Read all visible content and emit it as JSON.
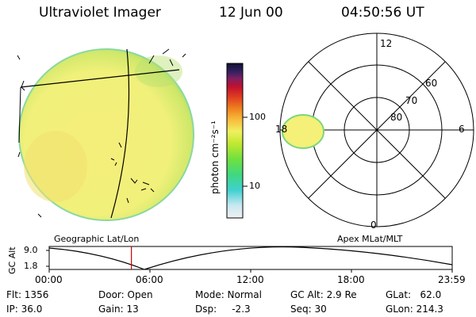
{
  "header": {
    "title": "Ultraviolet Imager",
    "date": "12 Jun 00",
    "time": "04:50:56 UT"
  },
  "colorbar": {
    "unit_label": "photon cm⁻²s⁻¹",
    "ticks": [
      "100",
      "10"
    ]
  },
  "polar": {
    "mlt_labels": [
      "12",
      "18",
      "6",
      "0"
    ],
    "mlat_labels": [
      "60",
      "70",
      "80"
    ]
  },
  "timeline": {
    "left_label": "Geographic Lat/Lon",
    "right_label": "Apex MLat/MLT",
    "y_axis_label": "GC Alt",
    "y_ticks": [
      "9.0",
      "1.8"
    ],
    "x_ticks": [
      "00:00",
      "06:00",
      "12:00",
      "18:00",
      "23:59"
    ],
    "current_time_fraction": 0.204
  },
  "footer": {
    "flt": "Flt: 1356",
    "ip": "IP: 36.0",
    "door": "Door: Open",
    "gain": "Gain: 13",
    "mode": "Mode: Normal",
    "dsp": "Dsp:     -2.3",
    "gc_alt": "GC Alt: 2.9 Re",
    "seq": "Seq: 30",
    "glat": "GLat:   62.0",
    "glon": "GLon: 214.3"
  },
  "colors": {
    "background": "#ffffff",
    "disc_fill": "#f2f07a",
    "disc_edge": "#7dd67d",
    "time_marker": "#cc0000"
  }
}
